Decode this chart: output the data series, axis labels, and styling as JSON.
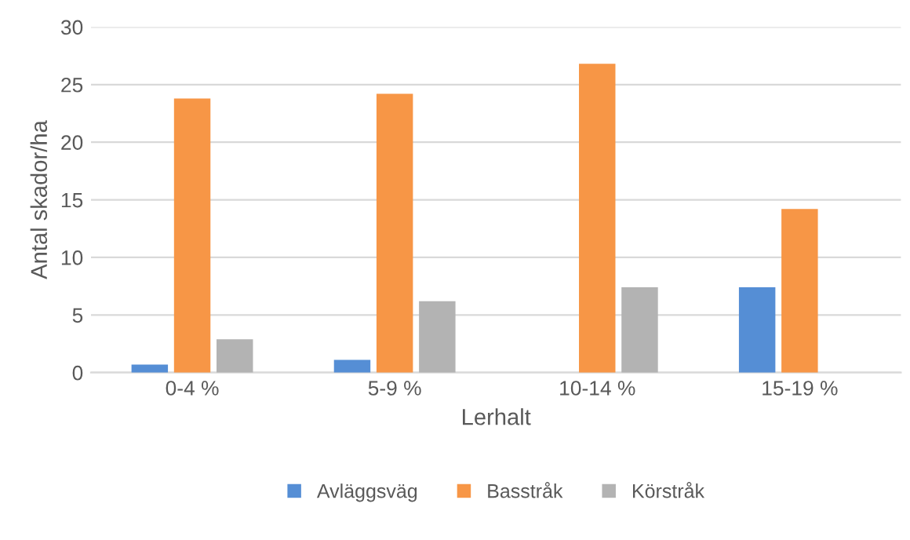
{
  "chart_data": {
    "type": "bar",
    "xlabel": "Lerhalt",
    "ylabel": "Antal skador/ha",
    "categories": [
      "0-4 %",
      "5-9 %",
      "10-14 %",
      "15-19 %"
    ],
    "series": [
      {
        "name": "Avläggsväg",
        "color": "#558ed5",
        "values": [
          0.7,
          1.1,
          0,
          7.4
        ]
      },
      {
        "name": "Basstråk",
        "color": "#f79646",
        "values": [
          23.8,
          24.2,
          26.8,
          14.2
        ]
      },
      {
        "name": "Körstråk",
        "color": "#b3b3b3",
        "values": [
          2.9,
          6.2,
          7.4,
          0
        ]
      }
    ],
    "ylim": [
      0,
      30
    ],
    "yticks": [
      0,
      5,
      10,
      15,
      20,
      25,
      30
    ],
    "grid": "y",
    "legend": "bottom"
  }
}
